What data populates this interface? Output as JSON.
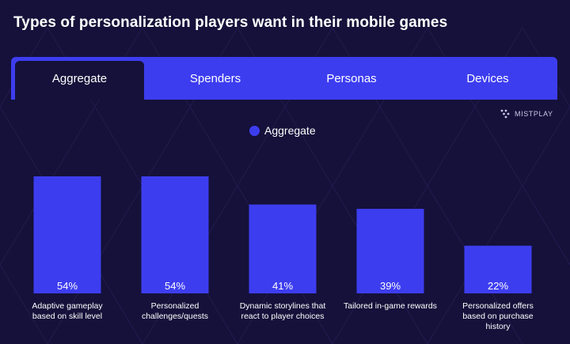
{
  "colors": {
    "background": "#15113a",
    "accent": "#3d3df0",
    "text": "#ffffff"
  },
  "header": {
    "title": "Types of personalization players want in their mobile games"
  },
  "tabs": [
    {
      "label": "Aggregate",
      "active": true
    },
    {
      "label": "Spenders",
      "active": false
    },
    {
      "label": "Personas",
      "active": false
    },
    {
      "label": "Devices",
      "active": false
    }
  ],
  "logo": {
    "text": "MISTPLAY"
  },
  "chart_data": {
    "type": "bar",
    "categories": [
      "Adaptive gameplay based on skill level",
      "Personalized challenges/quests",
      "Dynamic storylines that react to player choices",
      "Tailored in-game rewards",
      "Personalized offers based on purchase history"
    ],
    "category_lines": [
      [
        "Adaptive gameplay",
        "based on skill level"
      ],
      [
        "Personalized",
        "challenges/quests"
      ],
      [
        "Dynamic storylines that",
        "react to player choices"
      ],
      [
        "Tailored in-game rewards"
      ],
      [
        "Personalized offers",
        "based on purchase",
        "history"
      ]
    ],
    "series": [
      {
        "name": "Aggregate",
        "values": [
          54,
          54,
          41,
          39,
          22
        ]
      }
    ],
    "data_labels": [
      "54%",
      "54%",
      "41%",
      "39%",
      "22%"
    ],
    "legend": "top-center",
    "grid": false
  }
}
